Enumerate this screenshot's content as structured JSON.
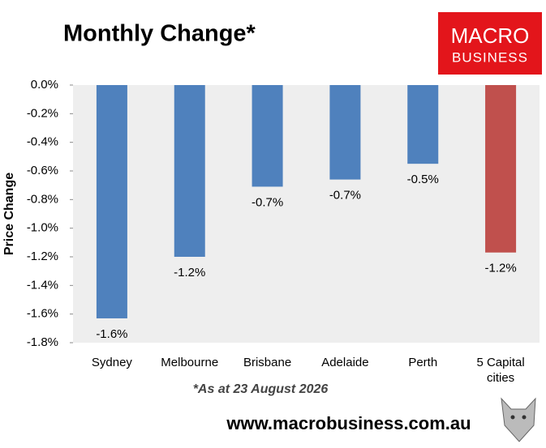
{
  "chart_data": {
    "type": "bar",
    "title": "Monthly Change*",
    "y_label": "Price Change",
    "categories": [
      "Sydney",
      "Melbourne",
      "Brisbane",
      "Adelaide",
      "Perth",
      "5 Capital cities"
    ],
    "series": [
      {
        "name": "Monthly Change",
        "values": [
          -1.63,
          -1.2,
          -0.71,
          -0.66,
          -0.55,
          -1.17
        ],
        "value_labels": [
          "-1.6%",
          "-1.2%",
          "-0.7%",
          "-0.7%",
          "-0.5%",
          "-1.2%"
        ],
        "colors": [
          "#4f81bd",
          "#4f81bd",
          "#4f81bd",
          "#4f81bd",
          "#4f81bd",
          "#c0504d"
        ]
      }
    ],
    "ylim": [
      -1.8,
      0
    ],
    "yticks": [
      {
        "value": 0,
        "label": "0.0%"
      },
      {
        "value": -0.2,
        "label": "-0.2%"
      },
      {
        "value": -0.4,
        "label": "-0.4%"
      },
      {
        "value": -0.6,
        "label": "-0.6%"
      },
      {
        "value": -0.8,
        "label": "-0.8%"
      },
      {
        "value": -1.0,
        "label": "-1.0%"
      },
      {
        "value": -1.2,
        "label": "-1.2%"
      },
      {
        "value": -1.4,
        "label": "-1.4%"
      },
      {
        "value": -1.6,
        "label": "-1.6%"
      },
      {
        "value": -1.8,
        "label": "-1.8%"
      }
    ],
    "footnote": "*As at 23 August 2026"
  },
  "branding": {
    "logo_top": "MACRO",
    "logo_bottom": "BUSINESS",
    "url": "www.macrobusiness.com.au"
  }
}
